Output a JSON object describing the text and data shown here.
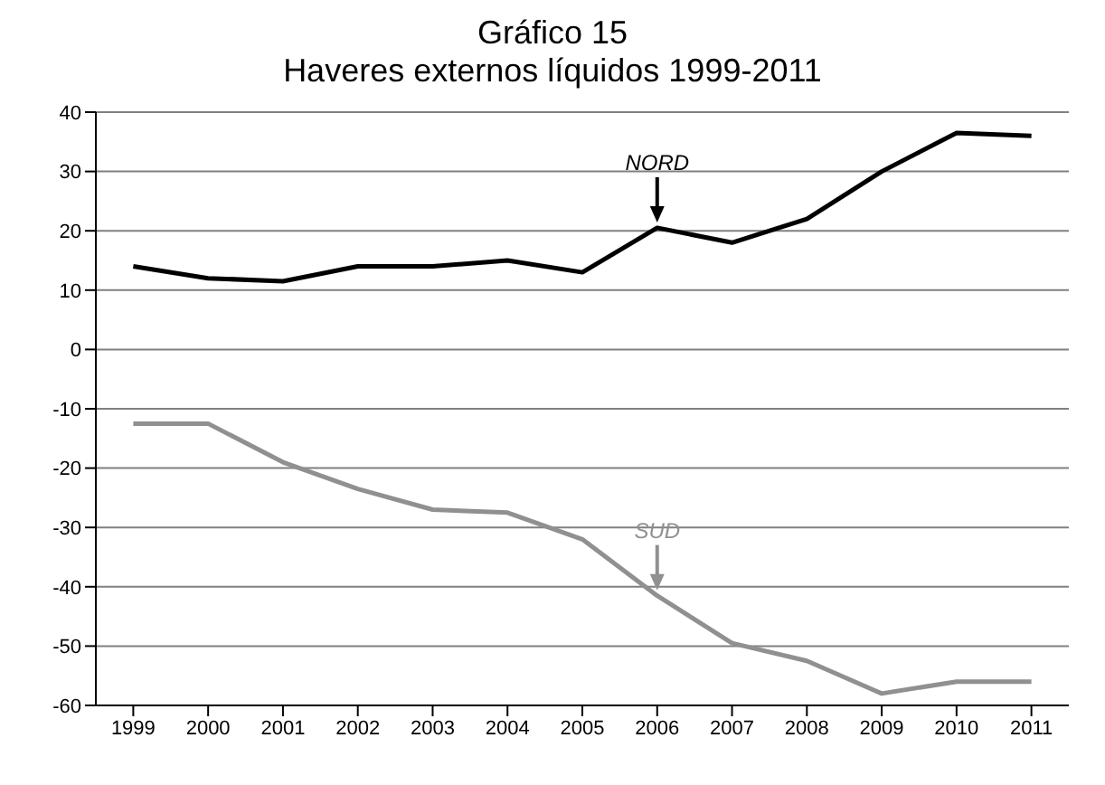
{
  "chart_data": {
    "type": "line",
    "title": "Gráfico 15",
    "subtitle": "Haveres externos líquidos 1999-2011",
    "categories": [
      "1999",
      "2000",
      "2001",
      "2002",
      "2003",
      "2004",
      "2005",
      "2006",
      "2007",
      "2008",
      "2009",
      "2010",
      "2011"
    ],
    "series": [
      {
        "name": "NORD",
        "color": "#000000",
        "values": [
          14,
          12,
          11.5,
          14,
          14,
          15,
          13,
          20.5,
          18,
          22,
          30,
          36.5,
          36
        ]
      },
      {
        "name": "SUD",
        "color": "#909090",
        "values": [
          -12.5,
          -12.5,
          -19,
          -23.5,
          -27,
          -27.5,
          -32,
          -41.5,
          -49.5,
          -52.5,
          -58,
          -56,
          -56
        ]
      }
    ],
    "ylim": [
      -60,
      40
    ],
    "yticks": [
      -60,
      -50,
      -40,
      -30,
      -20,
      -10,
      0,
      10,
      20,
      30,
      40
    ],
    "grid": "y",
    "legend": false,
    "marker": "none",
    "line_style": "solid"
  }
}
